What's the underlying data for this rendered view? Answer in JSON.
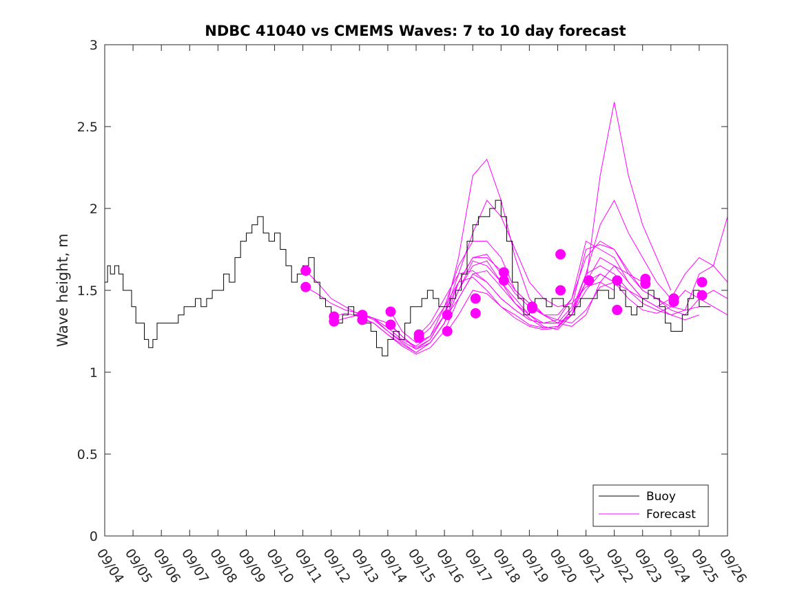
{
  "chart_data": {
    "type": "line",
    "title": "NDBC 41040 vs CMEMS Waves: 7 to 10 day forecast",
    "xlabel": "",
    "ylabel": "Wave height, m",
    "xlim": [
      0,
      22
    ],
    "ylim": [
      0,
      3
    ],
    "x_tick_values": [
      0,
      1,
      2,
      3,
      4,
      5,
      6,
      7,
      8,
      9,
      10,
      11,
      12,
      13,
      14,
      15,
      16,
      17,
      18,
      19,
      20,
      21,
      22
    ],
    "x_tick_labels": [
      "09/04",
      "09/05",
      "09/06",
      "09/07",
      "09/08",
      "09/09",
      "09/10",
      "09/11",
      "09/12",
      "09/13",
      "09/14",
      "09/15",
      "09/16",
      "09/17",
      "09/18",
      "09/19",
      "09/20",
      "09/21",
      "09/22",
      "09/23",
      "09/24",
      "09/25",
      "09/26"
    ],
    "y_tick_values": [
      0,
      0.5,
      1,
      1.5,
      2,
      2.5,
      3
    ],
    "y_tick_labels": [
      "0",
      "0.5",
      "1",
      "1.5",
      "2",
      "2.5",
      "3"
    ],
    "legend": {
      "position": "bottom-right",
      "entries": [
        "Buoy",
        "Forecast"
      ]
    },
    "colors": {
      "buoy": "#000000",
      "forecast": "#ff00ff"
    },
    "series": [
      {
        "name": "Buoy",
        "color": "#000000",
        "x": [
          0,
          0.1,
          0.2,
          0.35,
          0.5,
          0.65,
          0.8,
          0.95,
          1.1,
          1.25,
          1.4,
          1.55,
          1.7,
          1.85,
          2.0,
          2.2,
          2.4,
          2.6,
          2.8,
          3.0,
          3.2,
          3.4,
          3.6,
          3.8,
          4.0,
          4.2,
          4.4,
          4.6,
          4.8,
          5.0,
          5.2,
          5.4,
          5.6,
          5.8,
          6.0,
          6.2,
          6.4,
          6.6,
          6.8,
          7.0,
          7.2,
          7.4,
          7.6,
          7.8,
          8.0,
          8.2,
          8.4,
          8.6,
          8.8,
          9.0,
          9.2,
          9.4,
          9.6,
          9.8,
          10.0,
          10.2,
          10.4,
          10.6,
          10.8,
          11.0,
          11.2,
          11.4,
          11.6,
          11.8,
          12.0,
          12.2,
          12.4,
          12.6,
          12.8,
          13.0,
          13.2,
          13.4,
          13.6,
          13.8,
          14.0,
          14.2,
          14.4,
          14.6,
          14.8,
          15.0,
          15.2,
          15.4,
          15.6,
          15.8,
          16.0,
          16.2,
          16.4,
          16.6,
          16.8,
          17.0,
          17.2,
          17.4,
          17.6,
          17.8,
          18.0,
          18.2,
          18.4,
          18.6,
          18.8,
          19.0,
          19.2,
          19.4,
          19.6,
          19.8,
          20.0,
          20.2,
          20.4,
          20.6,
          20.8,
          21.0,
          21.2,
          21.4
        ],
        "values": [
          1.35,
          1.55,
          1.65,
          1.6,
          1.65,
          1.6,
          1.5,
          1.5,
          1.4,
          1.3,
          1.3,
          1.2,
          1.15,
          1.2,
          1.3,
          1.3,
          1.3,
          1.3,
          1.35,
          1.4,
          1.4,
          1.45,
          1.4,
          1.45,
          1.5,
          1.5,
          1.6,
          1.55,
          1.7,
          1.8,
          1.85,
          1.9,
          1.95,
          1.85,
          1.8,
          1.85,
          1.75,
          1.65,
          1.55,
          1.6,
          1.65,
          1.7,
          1.55,
          1.45,
          1.4,
          1.3,
          1.3,
          1.35,
          1.4,
          1.35,
          1.35,
          1.3,
          1.25,
          1.15,
          1.1,
          1.2,
          1.25,
          1.2,
          1.3,
          1.4,
          1.4,
          1.45,
          1.5,
          1.45,
          1.4,
          1.4,
          1.45,
          1.5,
          1.6,
          1.8,
          1.9,
          1.95,
          1.95,
          2.0,
          2.05,
          1.95,
          1.8,
          1.55,
          1.45,
          1.35,
          1.4,
          1.45,
          1.45,
          1.4,
          1.45,
          1.45,
          1.4,
          1.35,
          1.4,
          1.45,
          1.45,
          1.45,
          1.5,
          1.5,
          1.45,
          1.55,
          1.5,
          1.4,
          1.35,
          1.4,
          1.45,
          1.5,
          1.45,
          1.4,
          1.3,
          1.25,
          1.25,
          1.35,
          1.45,
          1.5,
          1.4,
          1.4
        ]
      },
      {
        "name": "Forecast",
        "color": "#ff00ff",
        "members": [
          {
            "x": [
              7.1,
              7.5,
              8.0,
              8.5,
              9.0,
              9.5,
              10.0,
              10.5,
              11.0,
              11.5,
              12.0,
              12.5,
              13.0,
              13.5,
              14.0,
              14.5,
              15.0,
              15.5,
              16.0,
              16.5,
              17.0,
              17.5,
              18.0
            ],
            "values": [
              1.62,
              1.55,
              1.45,
              1.4,
              1.35,
              1.33,
              1.3,
              1.22,
              1.15,
              1.2,
              1.35,
              1.6,
              1.85,
              2.05,
              1.95,
              1.75,
              1.55,
              1.45,
              1.4,
              1.42,
              1.52,
              1.55,
              1.5
            ]
          },
          {
            "x": [
              7.1,
              7.5,
              8.0,
              8.5,
              9.0,
              9.5,
              10.0,
              10.5,
              11.0,
              11.5,
              12.0,
              12.5,
              13.0,
              13.5,
              14.0,
              14.5,
              15.0,
              15.5,
              16.0,
              16.5,
              17.0,
              17.5,
              18.0
            ],
            "values": [
              1.52,
              1.48,
              1.42,
              1.38,
              1.36,
              1.33,
              1.27,
              1.2,
              1.16,
              1.22,
              1.4,
              1.65,
              1.8,
              1.8,
              1.7,
              1.5,
              1.42,
              1.35,
              1.3,
              1.35,
              1.5,
              1.6,
              1.55
            ]
          },
          {
            "x": [
              8.1,
              8.5,
              9.0,
              9.5,
              10.0,
              10.5,
              11.0,
              11.5,
              12.0,
              12.5,
              13.0,
              13.5,
              14.0,
              14.5,
              15.0,
              15.5,
              16.0,
              16.5,
              17.0,
              17.5,
              18.0,
              18.5,
              19.0
            ],
            "values": [
              1.34,
              1.36,
              1.34,
              1.3,
              1.23,
              1.17,
              1.12,
              1.18,
              1.3,
              1.55,
              1.7,
              1.7,
              1.62,
              1.5,
              1.42,
              1.35,
              1.32,
              1.3,
              1.38,
              1.52,
              1.55,
              1.5,
              1.45
            ]
          },
          {
            "x": [
              8.1,
              8.5,
              9.0,
              9.5,
              10.0,
              10.5,
              11.0,
              11.5,
              12.0,
              12.5,
              13.0,
              13.5,
              14.0,
              14.5,
              15.0,
              15.5,
              16.0,
              16.5,
              17.0,
              17.5,
              18.0,
              18.5,
              19.0
            ],
            "values": [
              1.31,
              1.33,
              1.35,
              1.33,
              1.25,
              1.19,
              1.14,
              1.2,
              1.35,
              1.7,
              2.2,
              2.3,
              2.05,
              1.7,
              1.45,
              1.35,
              1.3,
              1.28,
              1.35,
              1.55,
              1.65,
              1.6,
              1.55
            ]
          },
          {
            "x": [
              9.1,
              9.5,
              10.0,
              10.5,
              11.0,
              11.5,
              12.0,
              12.5,
              13.0,
              13.5,
              14.0,
              14.5,
              15.0,
              15.5,
              16.0,
              16.5,
              17.0,
              17.5,
              18.0,
              18.5,
              19.0,
              19.5,
              20.0
            ],
            "values": [
              1.35,
              1.32,
              1.25,
              1.18,
              1.12,
              1.18,
              1.3,
              1.5,
              1.68,
              1.65,
              1.55,
              1.45,
              1.35,
              1.3,
              1.3,
              1.35,
              1.55,
              2.2,
              2.65,
              2.2,
              1.9,
              1.7,
              1.5
            ]
          },
          {
            "x": [
              9.1,
              9.5,
              10.0,
              10.5,
              11.0,
              11.5,
              12.0,
              12.5,
              13.0,
              13.5,
              14.0,
              14.5,
              15.0,
              15.5,
              16.0,
              16.5,
              17.0,
              17.5,
              18.0,
              18.5,
              19.0,
              19.5,
              20.0
            ],
            "values": [
              1.32,
              1.3,
              1.23,
              1.16,
              1.11,
              1.15,
              1.25,
              1.45,
              1.6,
              1.62,
              1.52,
              1.42,
              1.33,
              1.27,
              1.28,
              1.35,
              1.6,
              1.9,
              2.05,
              1.85,
              1.7,
              1.55,
              1.45
            ]
          },
          {
            "x": [
              10.1,
              10.5,
              11.0,
              11.5,
              12.0,
              12.5,
              13.0,
              13.5,
              14.0,
              14.5,
              15.0,
              15.5,
              16.0,
              16.5,
              17.0,
              17.5,
              18.0,
              18.5,
              19.0,
              19.5,
              20.0,
              20.5,
              21.0
            ],
            "values": [
              1.37,
              1.25,
              1.18,
              1.22,
              1.35,
              1.55,
              1.7,
              1.72,
              1.6,
              1.48,
              1.4,
              1.35,
              1.35,
              1.45,
              1.7,
              1.8,
              1.75,
              1.6,
              1.5,
              1.45,
              1.4,
              1.38,
              1.4
            ]
          },
          {
            "x": [
              10.1,
              10.5,
              11.0,
              11.5,
              12.0,
              12.5,
              13.0,
              13.5,
              14.0,
              14.5,
              15.0,
              15.5,
              16.0,
              16.5,
              17.0,
              17.5,
              18.0,
              18.5,
              19.0,
              19.5,
              20.0,
              20.5,
              21.0
            ],
            "values": [
              1.29,
              1.22,
              1.14,
              1.18,
              1.3,
              1.5,
              1.65,
              1.68,
              1.55,
              1.42,
              1.35,
              1.28,
              1.26,
              1.35,
              1.55,
              1.7,
              1.65,
              1.55,
              1.45,
              1.4,
              1.35,
              1.32,
              1.35
            ]
          },
          {
            "x": [
              11.1,
              11.5,
              12.0,
              12.5,
              13.0,
              13.5,
              14.0,
              14.5,
              15.0,
              15.5,
              16.0,
              16.5,
              17.0,
              17.5,
              18.0,
              18.5,
              19.0,
              19.5,
              20.0,
              20.5,
              21.0,
              21.5,
              22.0
            ],
            "values": [
              1.23,
              1.3,
              1.45,
              1.6,
              1.62,
              1.55,
              1.45,
              1.38,
              1.32,
              1.3,
              1.3,
              1.4,
              1.75,
              1.78,
              1.75,
              1.62,
              1.5,
              1.45,
              1.38,
              1.35,
              1.45,
              1.5,
              1.45
            ]
          },
          {
            "x": [
              11.1,
              11.5,
              12.0,
              12.5,
              13.0,
              13.5,
              14.0,
              14.5,
              15.0,
              15.5,
              16.0,
              16.5,
              17.0,
              17.5,
              18.0,
              18.5,
              19.0,
              19.5,
              20.0,
              20.5,
              21.0,
              21.5,
              22.0
            ],
            "values": [
              1.21,
              1.27,
              1.4,
              1.55,
              1.58,
              1.5,
              1.4,
              1.35,
              1.29,
              1.27,
              1.28,
              1.38,
              1.6,
              1.65,
              1.6,
              1.5,
              1.42,
              1.38,
              1.35,
              1.38,
              1.6,
              1.65,
              1.95
            ]
          },
          {
            "x": [
              12.1,
              12.5,
              13.0,
              13.5,
              14.0,
              14.5,
              15.0,
              15.5,
              16.0,
              16.5,
              17.0,
              17.5,
              18.0,
              18.5,
              19.0,
              19.5,
              20.0,
              20.5,
              21.0,
              21.5,
              22.0
            ],
            "values": [
              1.35,
              1.45,
              1.6,
              1.55,
              1.45,
              1.38,
              1.32,
              1.3,
              1.32,
              1.45,
              1.8,
              1.75,
              1.7,
              1.55,
              1.45,
              1.4,
              1.45,
              1.6,
              1.7,
              1.65,
              1.55
            ]
          },
          {
            "x": [
              12.1,
              12.5,
              13.0,
              13.5,
              14.0,
              14.5,
              15.0,
              15.5,
              16.0,
              16.5,
              17.0,
              17.5,
              18.0,
              18.5,
              19.0,
              19.5,
              20.0,
              20.5,
              21.0,
              21.5,
              22.0
            ],
            "values": [
              1.25,
              1.35,
              1.5,
              1.48,
              1.4,
              1.33,
              1.28,
              1.26,
              1.27,
              1.38,
              1.55,
              1.6,
              1.55,
              1.45,
              1.38,
              1.36,
              1.4,
              1.5,
              1.45,
              1.4,
              1.35
            ]
          }
        ],
        "markers": {
          "x": [
            7.1,
            7.1,
            8.1,
            8.1,
            9.1,
            9.1,
            10.1,
            10.1,
            11.1,
            11.1,
            12.1,
            12.1,
            13.1,
            13.1,
            14.1,
            14.1,
            15.1,
            15.1,
            16.1,
            16.1,
            17.1,
            17.1,
            18.1,
            18.1,
            19.1,
            19.1,
            20.1,
            20.1,
            21.1,
            21.1
          ],
          "values": [
            1.62,
            1.52,
            1.34,
            1.31,
            1.35,
            1.32,
            1.37,
            1.29,
            1.23,
            1.21,
            1.35,
            1.25,
            1.45,
            1.36,
            1.61,
            1.56,
            1.4,
            1.39,
            1.72,
            1.5,
            1.56,
            1.56,
            1.56,
            1.38,
            1.57,
            1.54,
            1.45,
            1.43,
            1.55,
            1.47
          ]
        }
      }
    ]
  }
}
